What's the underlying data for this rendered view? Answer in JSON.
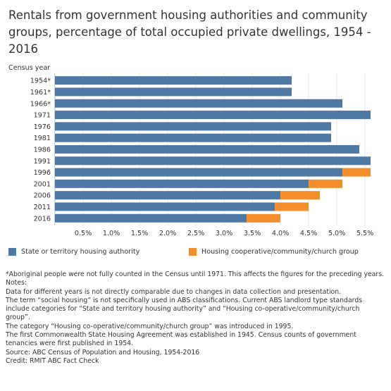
{
  "title": "Rentals from government housing authorities and community groups, percentage of total occupied private dwellings, 1954 - 2016",
  "chart_data": {
    "type": "bar",
    "orientation": "horizontal",
    "stacked": true,
    "ylabel": "Census year",
    "categories": [
      "1954*",
      "1961*",
      "1966*",
      "1971",
      "1976",
      "1981",
      "1986",
      "1991",
      "1996",
      "2001",
      "2006",
      "2011",
      "2016"
    ],
    "series": [
      {
        "name": "State or territory housing authority",
        "color": "#4e79a7",
        "values": [
          4.2,
          4.2,
          5.1,
          5.6,
          4.9,
          4.9,
          5.4,
          5.6,
          5.1,
          4.5,
          4.0,
          3.9,
          3.4
        ]
      },
      {
        "name": "Housing cooperative/community/church group",
        "color": "#f28e2b",
        "values": [
          0,
          0,
          0,
          0,
          0,
          0,
          0,
          0,
          0.5,
          0.6,
          0.7,
          0.6,
          0.6
        ]
      }
    ],
    "xticks": [
      "0.5%",
      "1.0%",
      "1.5%",
      "2.0%",
      "2.5%",
      "3.0%",
      "3.5%",
      "4.0%",
      "4.5%",
      "5.0%",
      "5.5%"
    ],
    "xlim": [
      0,
      5.8
    ],
    "grid": "vertical",
    "legend_position": "bottom"
  },
  "notes": [
    "*Aboriginal people were not fully counted in the Census until 1971. This affects the figures for the preceding years.",
    "Notes:",
    "Data for different years is not directly comparable due to changes in data collection and presentation.",
    "The term “social housing” is not specifically used in ABS classifications. Current ABS landlord type standards include categories for “State and territory housing authority” and “Housing co-operative/community/church group”.",
    "The category “Housing co-operative/community/church group” was introduced in 1995.",
    "The first Commonwealth State Housing Agreement was established in 1945. Census counts of government tenancies were first published in 1954.",
    "Source: ABC Census of Population and Housing, 1954-2016",
    "Credit: RMIT ABC Fact Check"
  ]
}
